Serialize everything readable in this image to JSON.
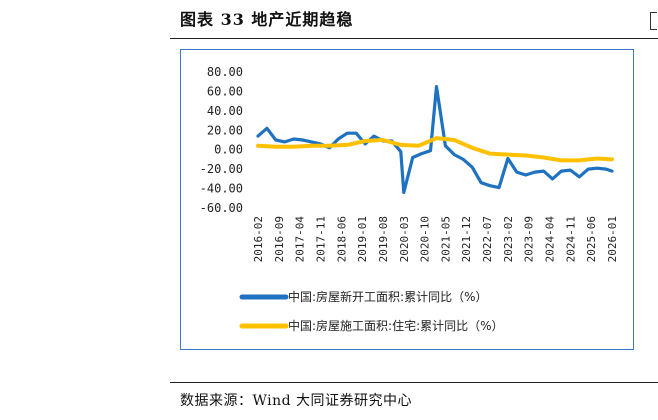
{
  "header": {
    "title": "图表 33  地产近期趋稳"
  },
  "footer": {
    "source": "数据来源：Wind  大同证券研究中心"
  },
  "colors": {
    "series1": "#1f72c0",
    "series2": "#ffc000",
    "frame": "#3a78c8"
  },
  "chart_data": {
    "type": "line",
    "title": "",
    "xlabel": "",
    "ylabel": "",
    "ylim": [
      -60,
      80
    ],
    "yticks": [
      "80.00",
      "60.00",
      "40.00",
      "20.00",
      "0.00",
      "-20.00",
      "-40.00",
      "-60.00"
    ],
    "xticks": [
      "2016-02",
      "2016-09",
      "2017-04",
      "2017-11",
      "2018-06",
      "2019-01",
      "2019-08",
      "2020-03",
      "2020-10",
      "2021-05",
      "2021-12",
      "2022-07",
      "2023-02",
      "2023-09",
      "2024-04",
      "2024-11",
      "2025-06",
      "2026-01"
    ],
    "grid": false,
    "legend_position": "bottom",
    "series": [
      {
        "name": "中国:房屋新开工面积:累计同比（%）",
        "x": [
          "2016-02",
          "2016-05",
          "2016-08",
          "2016-11",
          "2017-02",
          "2017-05",
          "2017-08",
          "2017-11",
          "2018-02",
          "2018-05",
          "2018-08",
          "2018-11",
          "2019-02",
          "2019-05",
          "2019-08",
          "2019-11",
          "2020-02",
          "2020-03",
          "2020-06",
          "2020-09",
          "2020-12",
          "2021-02",
          "2021-05",
          "2021-08",
          "2021-11",
          "2022-02",
          "2022-05",
          "2022-08",
          "2022-11",
          "2023-02",
          "2023-05",
          "2023-08",
          "2023-11",
          "2024-02",
          "2024-05",
          "2024-08",
          "2024-11",
          "2025-02",
          "2025-05",
          "2025-08",
          "2025-11",
          "2026-01"
        ],
        "values": [
          14,
          22,
          10,
          8,
          11,
          10,
          8,
          6,
          2,
          11,
          17,
          17,
          6,
          14,
          9,
          9,
          -2,
          -44,
          -8,
          -4,
          -1,
          65,
          4,
          -5,
          -10,
          -18,
          -34,
          -37,
          -39,
          -9,
          -23,
          -26,
          -23,
          -22,
          -30,
          -22,
          -21,
          -28,
          -20,
          -19,
          -20,
          -22
        ]
      },
      {
        "name": "中国:房屋施工面积:住宅:累计同比（%）",
        "x": [
          "2016-02",
          "2016-08",
          "2017-02",
          "2017-08",
          "2018-02",
          "2018-08",
          "2019-02",
          "2019-08",
          "2020-02",
          "2020-08",
          "2021-02",
          "2021-08",
          "2022-02",
          "2022-08",
          "2023-02",
          "2023-08",
          "2024-02",
          "2024-08",
          "2025-02",
          "2025-08",
          "2026-01"
        ],
        "values": [
          4,
          3,
          3,
          4,
          4,
          5,
          9,
          10,
          5,
          4,
          12,
          10,
          2,
          -4,
          -5,
          -6,
          -8,
          -11,
          -11,
          -9,
          -10
        ]
      }
    ]
  }
}
